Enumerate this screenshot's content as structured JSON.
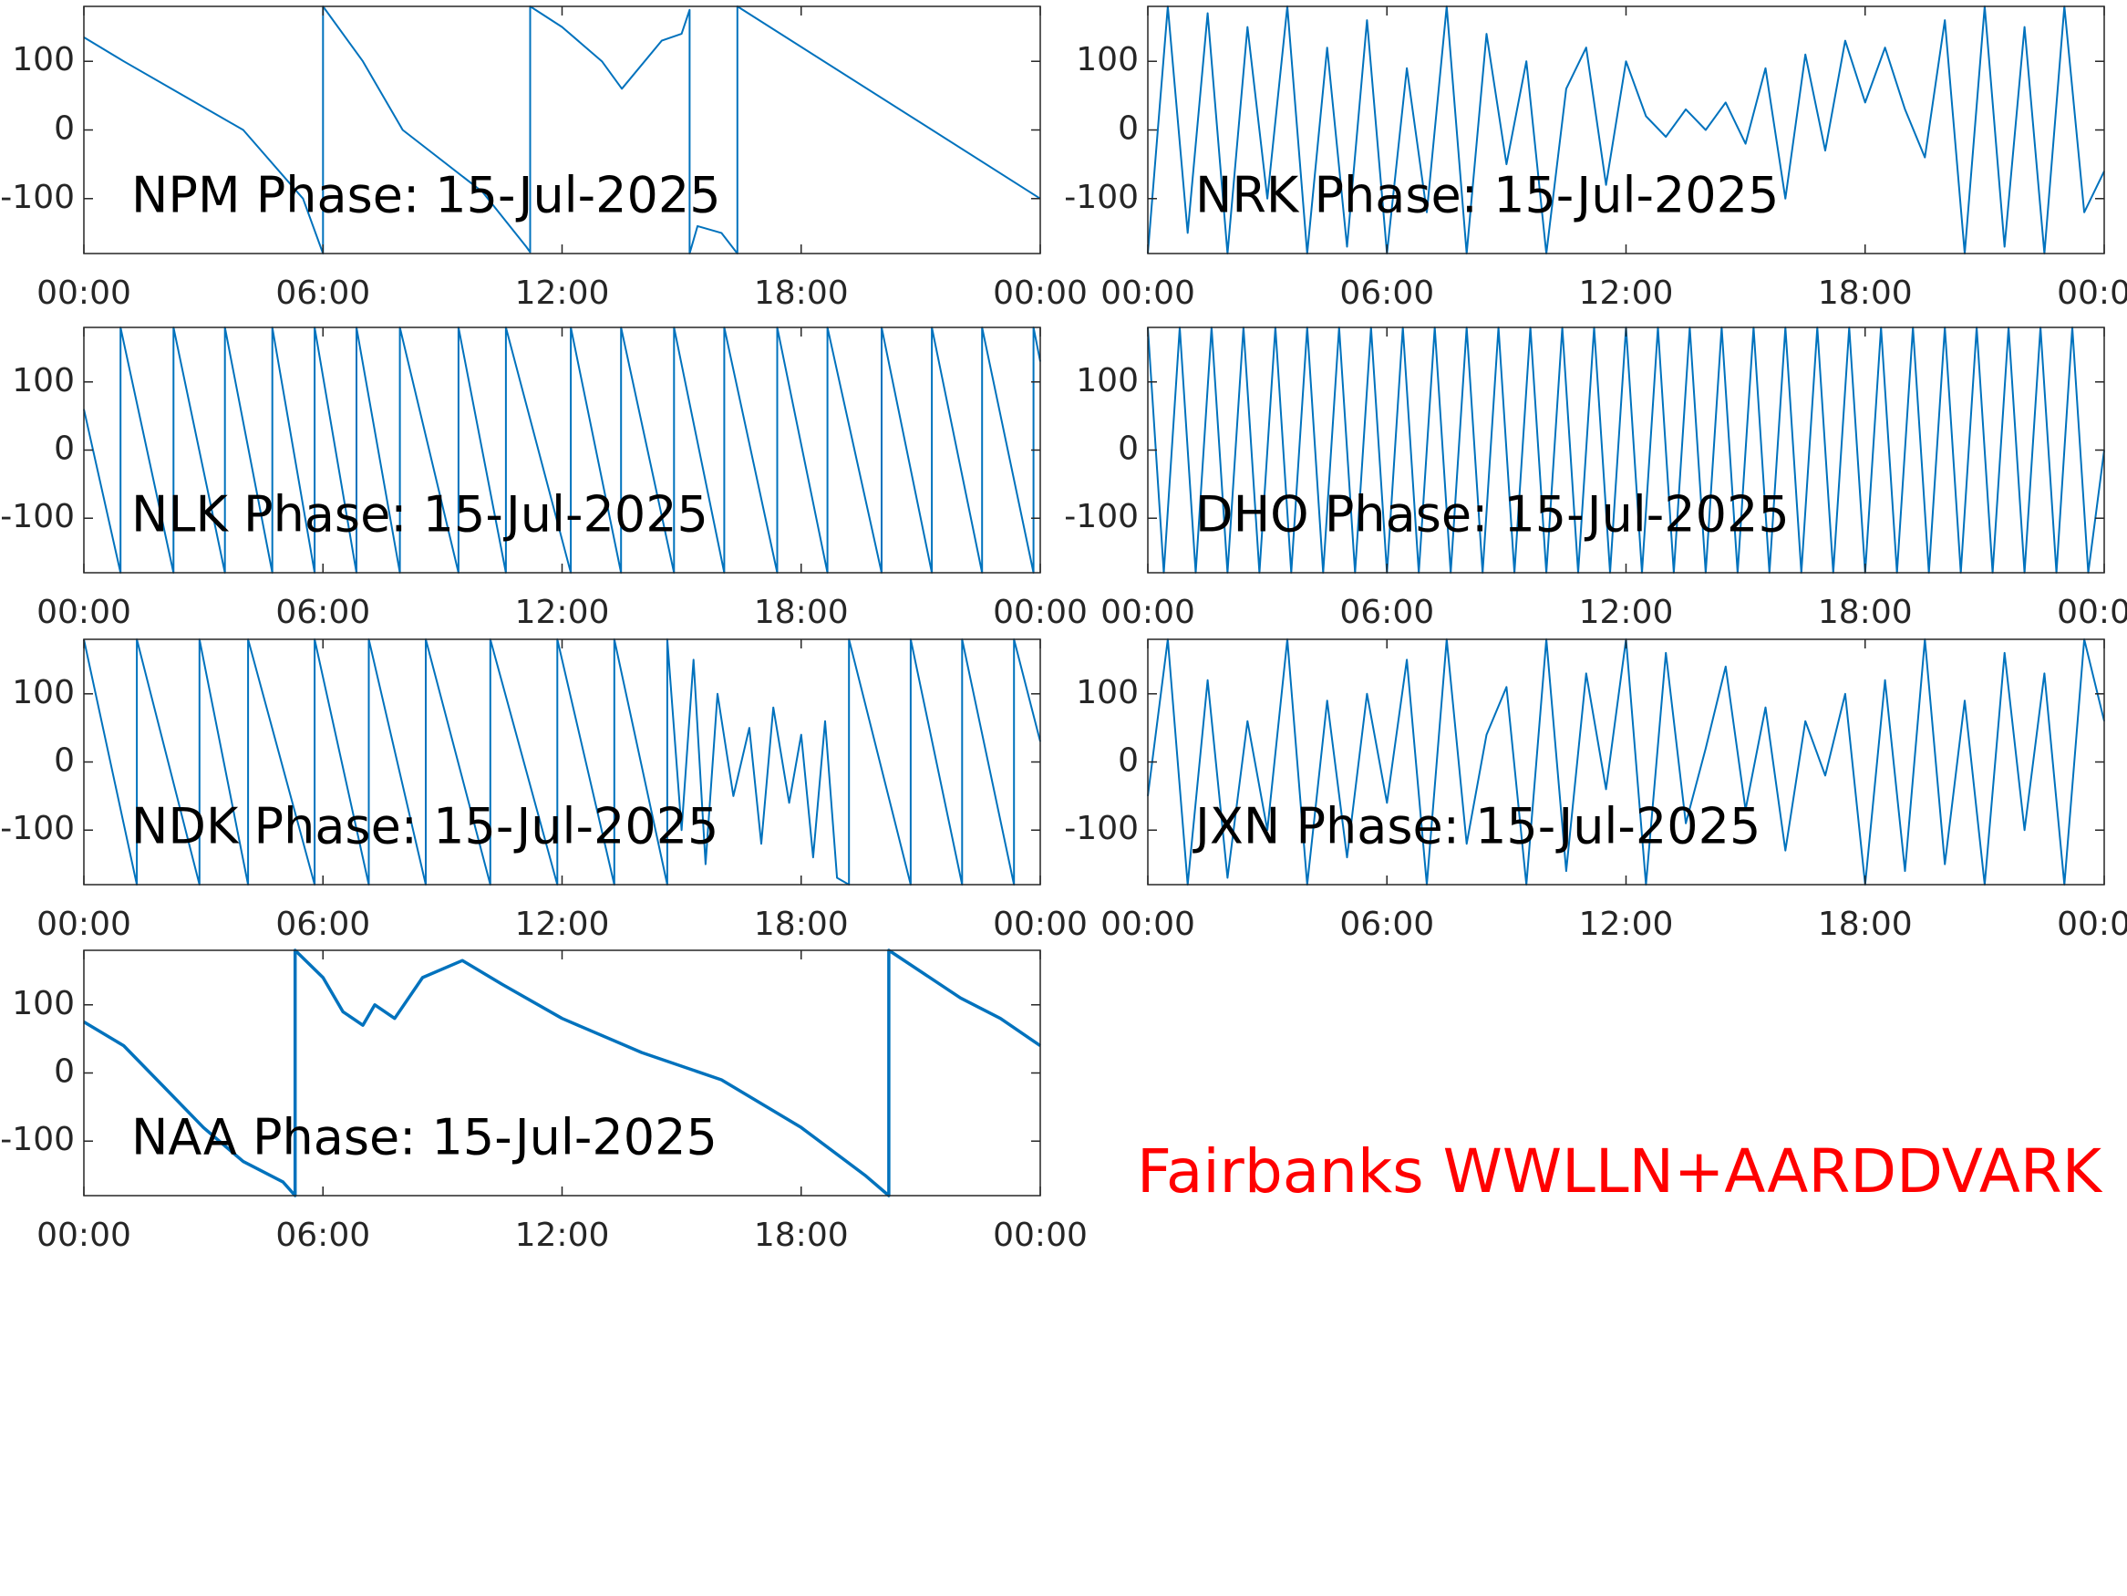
{
  "chart_data": [
    {
      "type": "line",
      "title": "NPM Phase: 15-Jul-2025",
      "color": "#0072bd",
      "x": [
        0,
        1,
        2.5,
        4,
        5.5,
        6,
        6,
        7,
        8,
        10,
        11.1,
        11.2,
        11.2,
        12,
        13,
        13.5,
        14.5,
        15,
        15.2,
        15.2,
        15.4,
        16,
        16.4,
        16.4,
        24
      ],
      "values": [
        135,
        100,
        50,
        0,
        -100,
        -180,
        180,
        100,
        0,
        -90,
        -170,
        -178,
        180,
        150,
        100,
        60,
        130,
        140,
        175,
        -180,
        -140,
        -150,
        -180,
        180,
        -100
      ],
      "xlim": [
        0,
        24
      ],
      "xticks": [
        {
          "value": 0,
          "label": "00:00"
        },
        {
          "value": 6,
          "label": "06:00"
        },
        {
          "value": 12,
          "label": "12:00"
        },
        {
          "value": 18,
          "label": "18:00"
        },
        {
          "value": 24,
          "label": "00:00"
        }
      ],
      "ylim": [
        -180,
        180
      ],
      "yticks": [
        -100,
        0,
        100
      ]
    },
    {
      "type": "line",
      "title": "NRK Phase: 15-Jul-2025",
      "color": "#0072bd",
      "x": [
        0,
        0.5,
        1,
        1.5,
        2,
        2.5,
        3,
        3.5,
        4,
        4.5,
        5,
        5.5,
        6,
        6.5,
        7,
        7.5,
        8,
        8.5,
        9,
        9.5,
        10,
        10.5,
        11,
        11.5,
        12,
        12.5,
        13,
        13.5,
        14,
        14.5,
        15,
        15.5,
        16,
        16.5,
        17,
        17.5,
        18,
        18.5,
        19,
        19.5,
        20,
        20.5,
        21,
        21.5,
        22,
        22.5,
        23,
        23.5,
        24
      ],
      "values": [
        -180,
        180,
        -150,
        170,
        -180,
        150,
        -100,
        180,
        -180,
        120,
        -170,
        160,
        -180,
        90,
        -120,
        180,
        -180,
        140,
        -50,
        100,
        -180,
        60,
        120,
        -80,
        100,
        20,
        -10,
        30,
        0,
        40,
        -20,
        90,
        -100,
        110,
        -30,
        130,
        40,
        120,
        30,
        -40,
        160,
        -180,
        180,
        -170,
        150,
        -180,
        180,
        -120,
        -60
      ],
      "xlim": [
        0,
        24
      ],
      "xticks": [
        {
          "value": 0,
          "label": "00:00"
        },
        {
          "value": 6,
          "label": "06:00"
        },
        {
          "value": 12,
          "label": "12:00"
        },
        {
          "value": 18,
          "label": "18:00"
        },
        {
          "value": 24,
          "label": "00:00"
        }
      ],
      "ylim": [
        -180,
        180
      ],
      "yticks": [
        -100,
        0,
        100
      ]
    },
    {
      "type": "line",
      "title": "NLK Phase: 15-Jul-2025",
      "color": "#0072bd",
      "x": [
        0,
        0.92,
        0.92,
        2.25,
        2.25,
        3.54,
        3.54,
        4.73,
        4.73,
        5.79,
        5.79,
        6.84,
        6.84,
        7.93,
        7.93,
        9.4,
        9.4,
        10.59,
        10.59,
        12.22,
        12.22,
        13.48,
        13.48,
        14.81,
        14.81,
        16.07,
        16.07,
        17.4,
        17.4,
        18.66,
        18.66,
        20.02,
        20.02,
        21.28,
        21.28,
        22.54,
        22.54,
        23.83,
        23.83,
        24
      ],
      "values": [
        60,
        -180,
        180,
        -180,
        180,
        -180,
        180,
        -180,
        180,
        -180,
        180,
        -180,
        180,
        -180,
        180,
        -180,
        180,
        -180,
        180,
        -180,
        180,
        -180,
        180,
        -180,
        180,
        -180,
        180,
        -180,
        180,
        -180,
        180,
        -180,
        180,
        -180,
        180,
        -180,
        180,
        -180,
        180,
        130
      ],
      "xlim": [
        0,
        24
      ],
      "xticks": [
        {
          "value": 0,
          "label": "00:00"
        },
        {
          "value": 6,
          "label": "06:00"
        },
        {
          "value": 12,
          "label": "12:00"
        },
        {
          "value": 18,
          "label": "18:00"
        },
        {
          "value": 24,
          "label": "00:00"
        }
      ],
      "ylim": [
        -180,
        180
      ],
      "yticks": [
        -100,
        0,
        100
      ]
    },
    {
      "type": "line",
      "title": "DHO Phase: 15-Jul-2025",
      "color": "#0072bd",
      "x": [
        0,
        0.4,
        0.8,
        1.2,
        1.6,
        2,
        2.4,
        2.8,
        3.2,
        3.6,
        4,
        4.4,
        4.8,
        5.2,
        5.6,
        6,
        6.4,
        6.8,
        7.2,
        7.6,
        8,
        8.4,
        8.8,
        9.2,
        9.6,
        10,
        10.4,
        10.8,
        11.2,
        11.6,
        12,
        12.4,
        12.8,
        13.2,
        13.6,
        14,
        14.4,
        14.8,
        15.2,
        15.6,
        16,
        16.4,
        16.8,
        17.2,
        17.6,
        18,
        18.4,
        18.8,
        19.2,
        19.6,
        20,
        20.4,
        20.8,
        21.2,
        21.6,
        22,
        22.4,
        22.8,
        23.2,
        23.6,
        24
      ],
      "values": [
        180,
        -180,
        180,
        -180,
        180,
        -180,
        180,
        -180,
        180,
        -180,
        180,
        -180,
        180,
        -180,
        180,
        -180,
        180,
        -180,
        180,
        -180,
        180,
        -180,
        180,
        -180,
        180,
        -180,
        180,
        -180,
        180,
        -180,
        180,
        -180,
        180,
        -180,
        180,
        -180,
        180,
        -180,
        180,
        -180,
        180,
        -180,
        180,
        -180,
        180,
        -180,
        180,
        -180,
        180,
        -180,
        180,
        -180,
        180,
        -180,
        180,
        -180,
        180,
        -180,
        180,
        -180,
        0
      ],
      "xlim": [
        0,
        24
      ],
      "xticks": [
        {
          "value": 0,
          "label": "00:00"
        },
        {
          "value": 6,
          "label": "06:00"
        },
        {
          "value": 12,
          "label": "12:00"
        },
        {
          "value": 18,
          "label": "18:00"
        },
        {
          "value": 24,
          "label": "00:00"
        }
      ],
      "ylim": [
        -180,
        180
      ],
      "yticks": [
        -100,
        0,
        100
      ]
    },
    {
      "type": "line",
      "title": "NDK Phase: 15-Jul-2025",
      "color": "#0072bd",
      "x": [
        0,
        1.33,
        1.33,
        2.9,
        2.9,
        4.12,
        4.12,
        5.79,
        5.79,
        7.15,
        7.15,
        8.58,
        8.58,
        10.2,
        10.2,
        11.88,
        11.88,
        13.31,
        13.31,
        14.64,
        14.64,
        15,
        15.3,
        15.6,
        15.9,
        16.3,
        16.7,
        17,
        17.3,
        17.7,
        18,
        18.3,
        18.6,
        18.9,
        19.2,
        19.2,
        20.75,
        20.75,
        22.04,
        22.04,
        23.34,
        23.34,
        24
      ],
      "values": [
        180,
        -180,
        180,
        -180,
        180,
        -180,
        180,
        -180,
        180,
        -180,
        180,
        -180,
        180,
        -180,
        180,
        -180,
        180,
        -180,
        180,
        -180,
        180,
        -100,
        150,
        -150,
        100,
        -50,
        50,
        -120,
        80,
        -60,
        40,
        -140,
        60,
        -170,
        -180,
        180,
        -180,
        180,
        -180,
        180,
        -180,
        180,
        30
      ],
      "xlim": [
        0,
        24
      ],
      "xticks": [
        {
          "value": 0,
          "label": "00:00"
        },
        {
          "value": 6,
          "label": "06:00"
        },
        {
          "value": 12,
          "label": "12:00"
        },
        {
          "value": 18,
          "label": "18:00"
        },
        {
          "value": 24,
          "label": "00:00"
        }
      ],
      "ylim": [
        -180,
        180
      ],
      "yticks": [
        -100,
        0,
        100
      ]
    },
    {
      "type": "line",
      "title": "JXN Phase: 15-Jul-2025",
      "color": "#0072bd",
      "x": [
        0,
        0.5,
        1,
        1.5,
        2,
        2.5,
        3,
        3.5,
        4,
        4.5,
        5,
        5.5,
        6,
        6.5,
        7,
        7.5,
        8,
        8.5,
        9,
        9.5,
        10,
        10.5,
        11,
        11.5,
        12,
        12.5,
        13,
        13.5,
        14,
        14.5,
        15,
        15.5,
        16,
        16.5,
        17,
        17.5,
        18,
        18.5,
        19,
        19.5,
        20,
        20.5,
        21,
        21.5,
        22,
        22.5,
        23,
        23.5,
        24
      ],
      "values": [
        -50,
        180,
        -180,
        120,
        -170,
        60,
        -100,
        180,
        -180,
        90,
        -140,
        100,
        -60,
        150,
        -180,
        180,
        -120,
        40,
        110,
        -180,
        180,
        -160,
        130,
        -40,
        180,
        -180,
        160,
        -90,
        20,
        140,
        -70,
        80,
        -130,
        60,
        -20,
        100,
        -180,
        120,
        -160,
        180,
        -150,
        90,
        -180,
        160,
        -100,
        130,
        -180,
        180,
        60
      ],
      "xlim": [
        0,
        24
      ],
      "xticks": [
        {
          "value": 0,
          "label": "00:00"
        },
        {
          "value": 6,
          "label": "06:00"
        },
        {
          "value": 12,
          "label": "12:00"
        },
        {
          "value": 18,
          "label": "18:00"
        },
        {
          "value": 24,
          "label": "00:00"
        }
      ],
      "ylim": [
        -180,
        180
      ],
      "yticks": [
        -100,
        0,
        100
      ]
    },
    {
      "type": "line",
      "title": "NAA Phase: 15-Jul-2025",
      "color": "#0072bd",
      "x": [
        0,
        1,
        2,
        3,
        4,
        5,
        5.3,
        5.3,
        6,
        6.5,
        7,
        7.3,
        7.8,
        8.5,
        9.5,
        10.5,
        12,
        14,
        16,
        18,
        19.6,
        20.2,
        20.2,
        22,
        23,
        24
      ],
      "values": [
        75,
        40,
        -20,
        -80,
        -130,
        -160,
        -180,
        180,
        140,
        90,
        70,
        100,
        80,
        140,
        165,
        130,
        80,
        30,
        -10,
        -80,
        -150,
        -180,
        180,
        110,
        80,
        40
      ],
      "xlim": [
        0,
        24
      ],
      "xticks": [
        {
          "value": 0,
          "label": "00:00"
        },
        {
          "value": 6,
          "label": "06:00"
        },
        {
          "value": 12,
          "label": "12:00"
        },
        {
          "value": 18,
          "label": "18:00"
        },
        {
          "value": 24,
          "label": "00:00"
        }
      ],
      "ylim": [
        -180,
        180
      ],
      "yticks": [
        -100,
        0,
        100
      ]
    }
  ],
  "figure_text": "Fairbanks WWLLN+AARDDVARK",
  "figure_text_color": "#ff0000"
}
